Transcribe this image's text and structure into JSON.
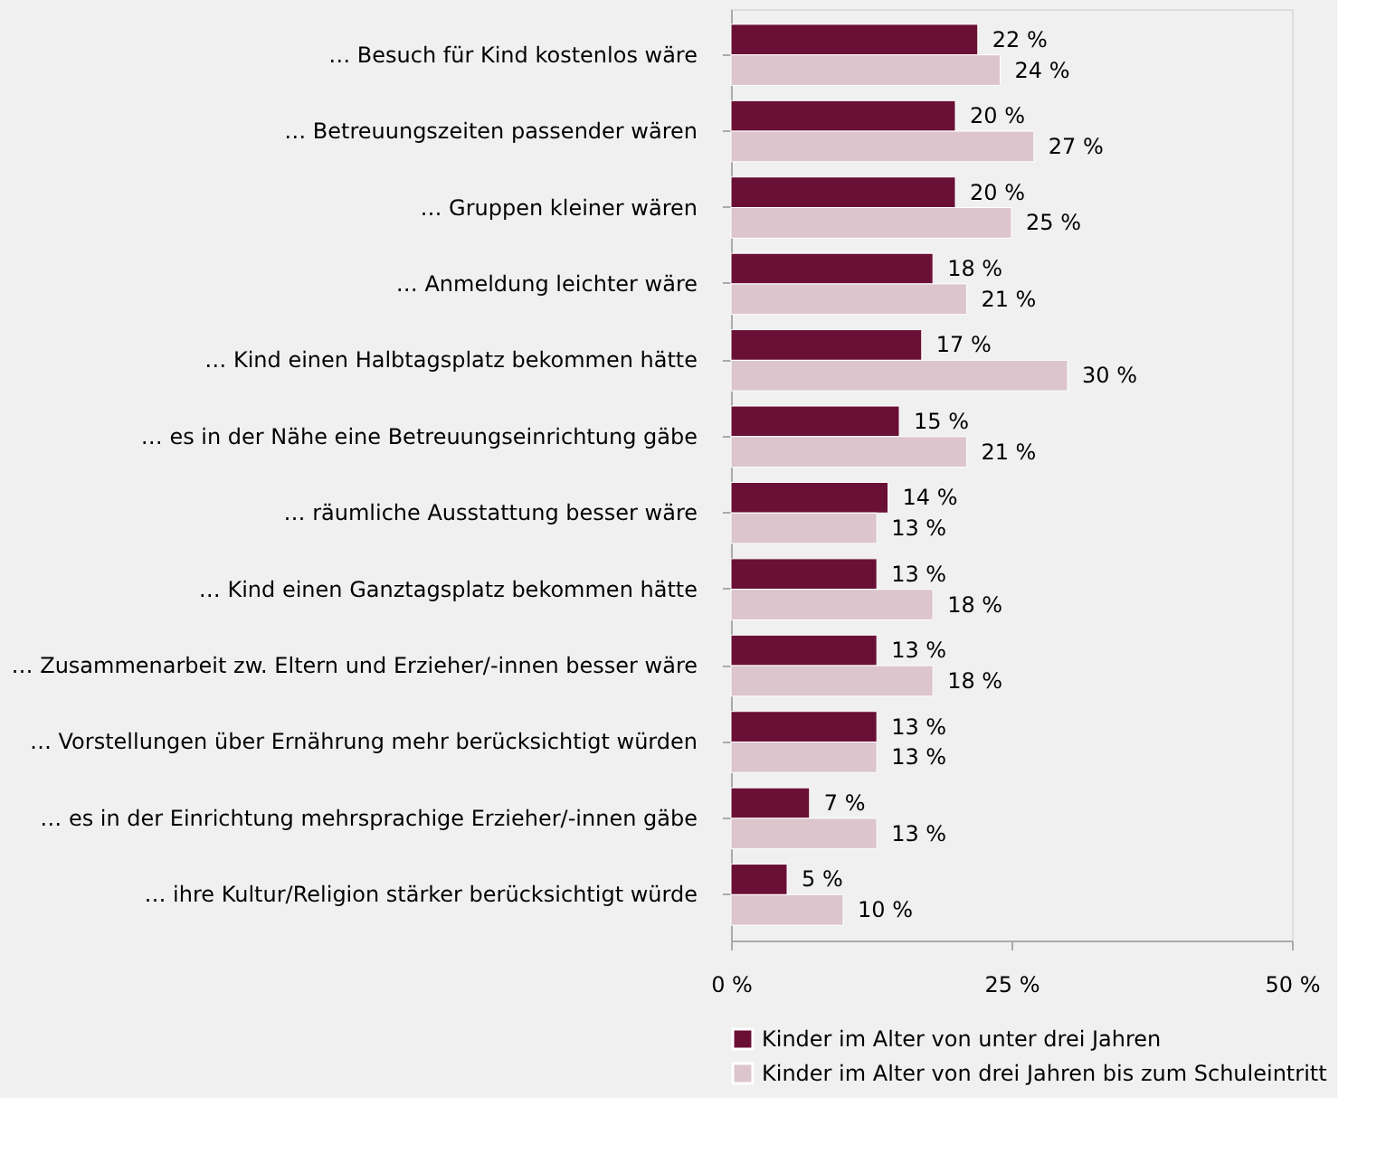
{
  "chart_data": {
    "type": "bar",
    "orientation": "horizontal",
    "categories": [
      "… Besuch für Kind kostenlos wäre",
      "… Betreuungszeiten passender wären",
      "… Gruppen kleiner wären",
      "… Anmeldung leichter wäre",
      "… Kind einen Halbtagsplatz bekommen hätte",
      "… es in der Nähe eine Betreuungseinrichtung gäbe",
      "… räumliche Ausstattung besser wäre",
      "… Kind einen Ganztagsplatz bekommen hätte",
      "… Zusammenarbeit zw. Eltern und Erzieher/-innen besser wäre",
      "… Vorstellungen über Ernährung mehr berücksichtigt würden",
      "… es in der Einrichtung mehrsprachige Erzieher/-innen gäbe",
      "… ihre Kultur/Religion stärker berücksichtigt würde"
    ],
    "series": [
      {
        "name": "Kinder im Alter von unter drei Jahren",
        "color": "#6a0f35",
        "values": [
          22,
          20,
          20,
          18,
          17,
          15,
          14,
          13,
          13,
          13,
          7,
          5
        ],
        "value_labels": [
          "22 %",
          "20 %",
          "20 %",
          "18 %",
          "17 %",
          "15 %",
          "14 %",
          "13 %",
          "13 %",
          "13 %",
          "7 %",
          "5 %"
        ]
      },
      {
        "name": "Kinder im Alter von drei Jahren bis zum Schuleintritt",
        "color": "#dcc5cd",
        "values": [
          24,
          27,
          25,
          21,
          30,
          21,
          13,
          18,
          18,
          13,
          13,
          10
        ],
        "value_labels": [
          "24 %",
          "27 %",
          "25 %",
          "21 %",
          "30 %",
          "21 %",
          "13 %",
          "18 %",
          "18 %",
          "13 %",
          "13 %",
          "10 %"
        ]
      }
    ],
    "xlim": [
      0,
      50
    ],
    "xticks": [
      {
        "value": 0,
        "label": "0 %"
      },
      {
        "value": 25,
        "label": "25 %"
      },
      {
        "value": 50,
        "label": "50 %"
      }
    ],
    "grid": false,
    "legend": "bottom"
  }
}
